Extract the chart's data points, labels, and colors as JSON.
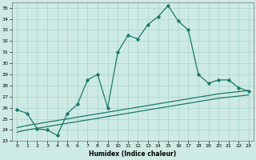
{
  "x": [
    0,
    1,
    2,
    3,
    4,
    5,
    6,
    7,
    8,
    9,
    10,
    11,
    12,
    13,
    14,
    15,
    16,
    17,
    18,
    19,
    20,
    21,
    22,
    23
  ],
  "humidex": [
    25.8,
    25.5,
    24.1,
    24.0,
    23.5,
    25.5,
    26.3,
    28.5,
    29.0,
    26.0,
    31.0,
    32.5,
    32.2,
    33.5,
    34.2,
    35.2,
    33.8,
    33.0,
    29.0,
    28.2,
    28.5,
    28.5,
    27.8,
    27.5
  ],
  "line1": [
    24.2,
    24.4,
    24.55,
    24.7,
    24.85,
    25.0,
    25.15,
    25.3,
    25.45,
    25.6,
    25.75,
    25.9,
    26.05,
    26.2,
    26.35,
    26.5,
    26.65,
    26.8,
    26.95,
    27.1,
    27.25,
    27.35,
    27.45,
    27.55
  ],
  "line2": [
    23.8,
    24.0,
    24.15,
    24.3,
    24.45,
    24.6,
    24.75,
    24.9,
    25.05,
    25.2,
    25.35,
    25.5,
    25.65,
    25.8,
    25.95,
    26.1,
    26.25,
    26.4,
    26.55,
    26.7,
    26.85,
    26.95,
    27.05,
    27.15
  ],
  "color": "#1a7a6a",
  "bg_color": "#ceeae4",
  "grid_color": "#aad4cc",
  "xlabel": "Humidex (Indice chaleur)",
  "ylim": [
    23,
    35.5
  ],
  "xlim": [
    -0.5,
    23.5
  ],
  "yticks": [
    23,
    24,
    25,
    26,
    27,
    28,
    29,
    30,
    31,
    32,
    33,
    34,
    35
  ],
  "xticks": [
    0,
    1,
    2,
    3,
    4,
    5,
    6,
    7,
    8,
    9,
    10,
    11,
    12,
    13,
    14,
    15,
    16,
    17,
    18,
    19,
    20,
    21,
    22,
    23
  ]
}
